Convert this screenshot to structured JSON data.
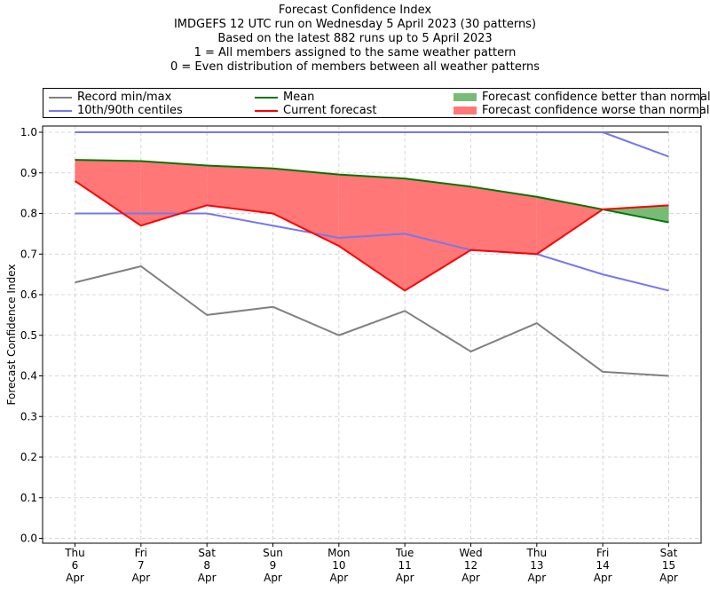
{
  "title": {
    "lines": [
      "Forecast Confidence Index",
      "IMDGEFS 12 UTC run on Wednesday 5 April 2023 (30 patterns)",
      "Based on the latest 882 runs up to 5 April 2023",
      "1 = All members assigned to the same weather pattern",
      "0 = Even distribution of members between all weather patterns"
    ]
  },
  "legend": {
    "record": "Record min/max",
    "centiles": "10th/90th centiles",
    "mean": "Mean",
    "current": "Current forecast",
    "better": "Forecast confidence better than normal",
    "worse": "Forecast confidence worse than normal"
  },
  "colors": {
    "record": "#808080",
    "centiles": "#7777ee",
    "mean": "#007700",
    "current": "#ff0000",
    "better": "#77bb77",
    "worse": "#ff7777",
    "grid": "#cccccc"
  },
  "chart_data": {
    "type": "line",
    "ylabel": "Forecast Confidence Index",
    "ylim": [
      0.0,
      1.0
    ],
    "yticks": [
      "0.0",
      "0.1",
      "0.2",
      "0.3",
      "0.4",
      "0.5",
      "0.6",
      "0.7",
      "0.8",
      "0.9",
      "1.0"
    ],
    "grid": true,
    "legend_position": "top",
    "categories": [
      [
        "Thu",
        "6",
        "Apr"
      ],
      [
        "Fri",
        "7",
        "Apr"
      ],
      [
        "Sat",
        "8",
        "Apr"
      ],
      [
        "Sun",
        "9",
        "Apr"
      ],
      [
        "Mon",
        "10",
        "Apr"
      ],
      [
        "Tue",
        "11",
        "Apr"
      ],
      [
        "Wed",
        "12",
        "Apr"
      ],
      [
        "Thu",
        "13",
        "Apr"
      ],
      [
        "Fri",
        "14",
        "Apr"
      ],
      [
        "Sat",
        "15",
        "Apr"
      ]
    ],
    "series": [
      {
        "key": "record_max",
        "name": "Record min/max",
        "values": [
          1.0,
          1.0,
          1.0,
          1.0,
          1.0,
          1.0,
          1.0,
          1.0,
          1.0,
          1.0
        ]
      },
      {
        "key": "record_min",
        "name": "Record min/max",
        "values": [
          0.63,
          0.67,
          0.55,
          0.57,
          0.5,
          0.56,
          0.46,
          0.53,
          0.41,
          0.4
        ]
      },
      {
        "key": "p90",
        "name": "10th/90th centiles",
        "values": [
          1.0,
          1.0,
          1.0,
          1.0,
          1.0,
          1.0,
          1.0,
          1.0,
          1.0,
          0.94
        ]
      },
      {
        "key": "p10",
        "name": "10th/90th centiles",
        "values": [
          0.8,
          0.8,
          0.8,
          0.77,
          0.74,
          0.75,
          0.71,
          0.7,
          0.65,
          0.61
        ]
      },
      {
        "key": "mean",
        "name": "Mean",
        "values": [
          0.932,
          0.929,
          0.918,
          0.911,
          0.896,
          0.886,
          0.866,
          0.841,
          0.81,
          0.778
        ]
      },
      {
        "key": "current",
        "name": "Current forecast",
        "values": [
          0.88,
          0.77,
          0.82,
          0.8,
          0.72,
          0.61,
          0.71,
          0.7,
          0.81,
          0.82
        ]
      }
    ]
  }
}
